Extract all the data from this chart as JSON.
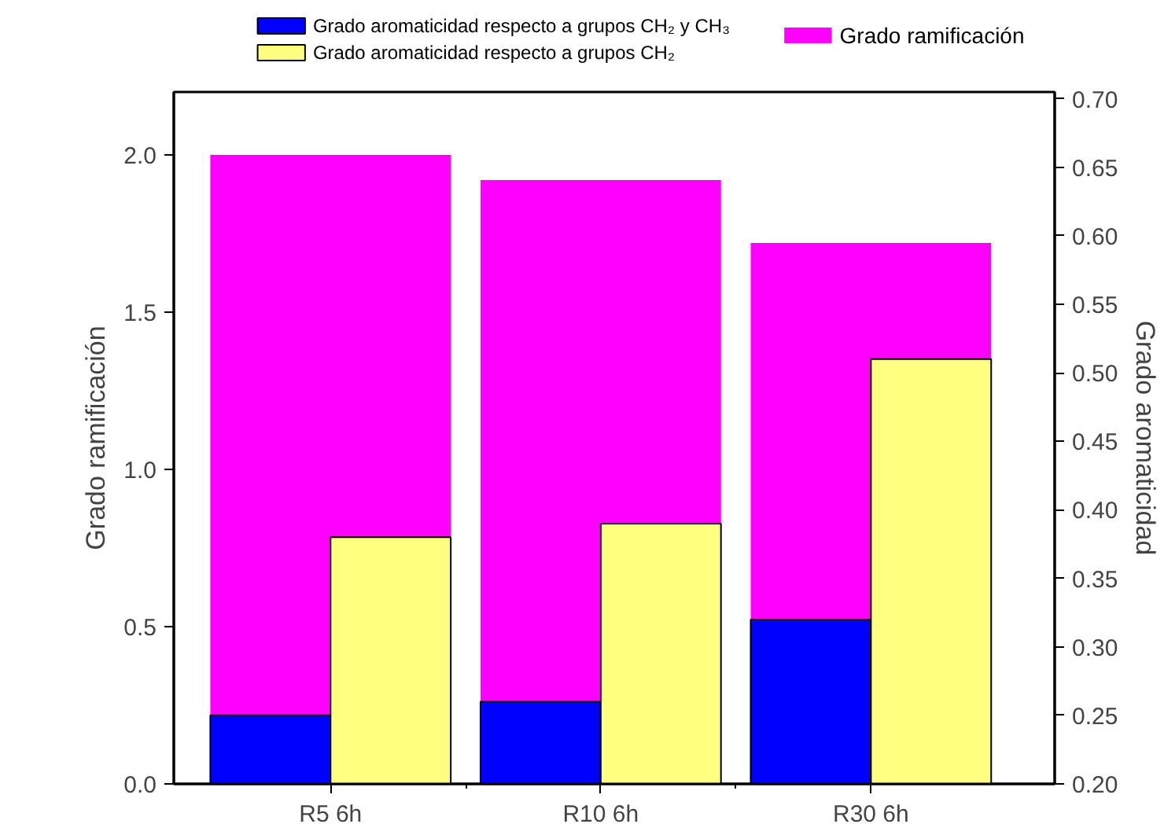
{
  "chart_data": {
    "type": "bar",
    "categories": [
      "R5 6h",
      "R10 6h",
      "R30 6h"
    ],
    "ylabel": "Grado ramificación",
    "y2label": "Grado aromaticidad",
    "series": [
      {
        "name": "Grado ramificación",
        "color": "#ff00ff",
        "values": [
          2.0,
          1.92,
          1.72
        ],
        "axis": "y"
      },
      {
        "name": "Grado aromaticidad respecto a grupos CH₂ y CH₃",
        "color": "#0000ff",
        "values": [
          0.25,
          0.26,
          0.32
        ],
        "axis": "y2"
      },
      {
        "name": "Grado aromaticidad respecto a grupos CH₂",
        "color": "#ffff80",
        "values": [
          0.38,
          0.39,
          0.51
        ],
        "axis": "y2"
      }
    ],
    "ylim": [
      0,
      2.2
    ],
    "yticks": [
      {
        "value": 0,
        "label": "0.0"
      },
      0.5,
      {
        "value": 1,
        "label": "1.0"
      },
      1.5,
      {
        "value": 2,
        "label": "2.0"
      }
    ],
    "y2lim": [
      0.2,
      0.705
    ],
    "y2ticks": [
      {
        "value": 0.2,
        "label": "0.20"
      },
      0.25,
      {
        "value": 0.3,
        "label": "0.30"
      },
      0.35,
      {
        "value": 0.4,
        "label": "0.40"
      },
      0.45,
      {
        "value": 0.5,
        "label": "0.50"
      },
      0.55,
      {
        "value": 0.6,
        "label": "0.60"
      },
      0.65,
      {
        "value": 0.7,
        "label": "0.70"
      }
    ],
    "grid": false,
    "legend": "top"
  }
}
